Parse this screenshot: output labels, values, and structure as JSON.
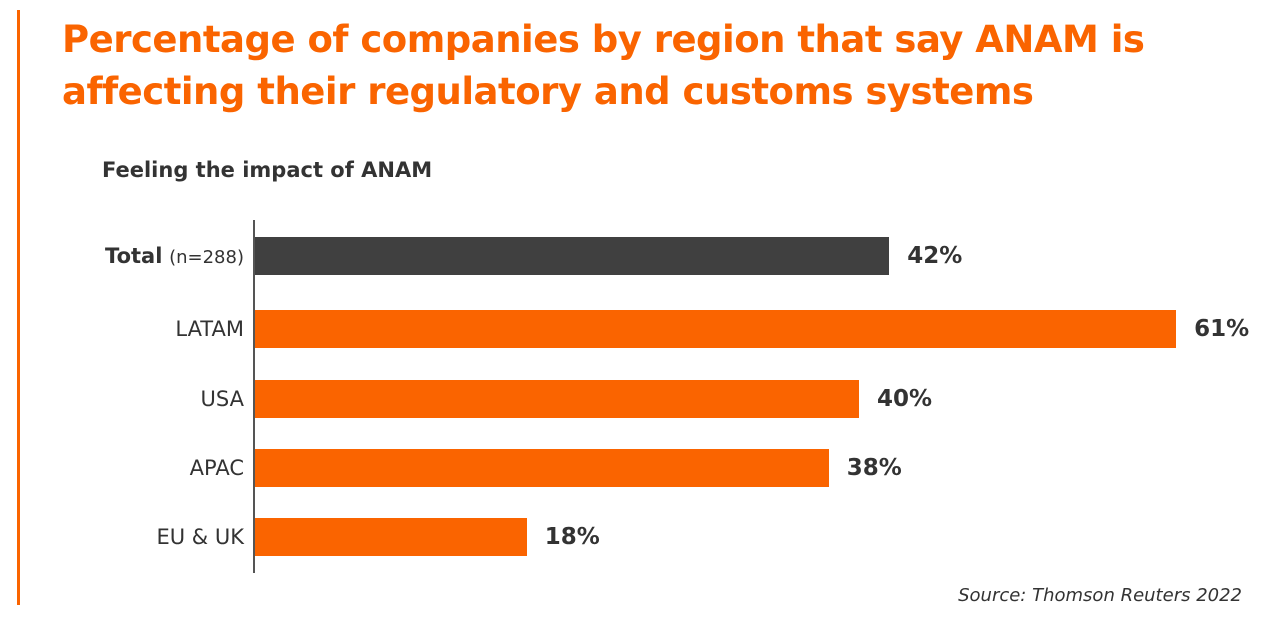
{
  "title": "Percentage of companies by region that say ANAM is affecting their regulatory and customs systems",
  "source": "Source: Thomson Reuters 2022",
  "colors": {
    "accent": "#fa6400",
    "total": "#404040"
  },
  "chart_data": {
    "type": "bar",
    "orientation": "horizontal",
    "title": "Feeling the impact of ANAM",
    "categories": [
      "Total",
      "LATAM",
      "USA",
      "APAC",
      "EU & UK"
    ],
    "category_notes": [
      "(n=288)",
      "",
      "",
      "",
      ""
    ],
    "values": [
      42,
      61,
      40,
      38,
      18
    ],
    "value_labels": [
      "42%",
      "61%",
      "40%",
      "38%",
      "18%"
    ],
    "xlim": [
      0,
      61
    ],
    "xlabel": "",
    "ylabel": "",
    "grid": false
  }
}
